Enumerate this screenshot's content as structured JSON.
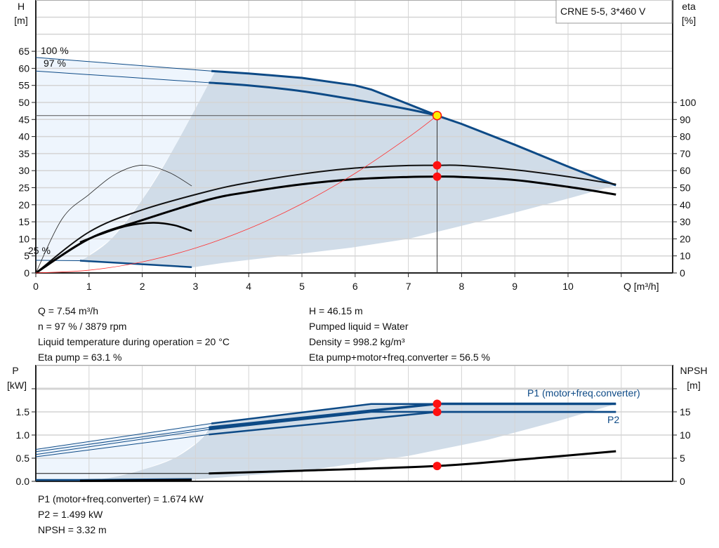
{
  "colors": {
    "curve_blue": "#0d4a86",
    "region_dark": "#d0dce8",
    "region_light": "#eef5fd",
    "grid": "#d4d4d4",
    "system_curve": "#ff3030",
    "duty_point": "#ffee00",
    "marker": "#ff1010"
  },
  "chart_data": [
    {
      "type": "line",
      "title": "CRNE 5-5, 3*460 V",
      "xlabel": "Q [m³/h]",
      "ylabel": [
        "H",
        "[m]"
      ],
      "y2label": [
        "eta",
        "[%]"
      ],
      "xlim": [
        0,
        11.95
      ],
      "ylim": [
        0,
        80
      ],
      "y2lim": [
        0,
        164.6
      ],
      "xticks": [
        "0",
        "1",
        "2",
        "3",
        "4",
        "5",
        "6",
        "7",
        "8",
        "9",
        "10"
      ],
      "yticks": [
        "0",
        "5",
        "10",
        "15",
        "20",
        "25",
        "30",
        "35",
        "40",
        "45",
        "50",
        "55",
        "60",
        "65"
      ],
      "y2ticks": [
        "0",
        "10",
        "20",
        "30",
        "40",
        "50",
        "60",
        "70",
        "80",
        "90",
        "100"
      ],
      "grid": true,
      "curve_labels": [
        "100 %",
        "97 %",
        "25 %"
      ],
      "series": [
        {
          "key": "H_100",
          "axis": "H",
          "points": [
            [
              0,
              63.2
            ],
            [
              3.3,
              59.2
            ],
            [
              4,
              58.5
            ],
            [
              5,
              57.2
            ],
            [
              6,
              55
            ],
            [
              6.3,
              53.8
            ],
            [
              7,
              49.5
            ],
            [
              7.54,
              46.15
            ],
            [
              8,
              43.7
            ],
            [
              9,
              37.6
            ],
            [
              10,
              31.2
            ],
            [
              10.9,
              25.7
            ]
          ]
        },
        {
          "key": "H_97",
          "axis": "H",
          "points": [
            [
              0,
              59.2
            ],
            [
              3.25,
              55.8
            ],
            [
              4,
              55
            ],
            [
              5,
              53.3
            ],
            [
              6,
              50.8
            ],
            [
              7,
              48
            ],
            [
              7.54,
              46.15
            ]
          ]
        },
        {
          "key": "H_25",
          "axis": "H",
          "points": [
            [
              0,
              3.7
            ],
            [
              0.83,
              3.6
            ],
            [
              2.93,
              1.7
            ]
          ]
        },
        {
          "key": "eta_pump",
          "axis": "eta",
          "points": [
            [
              0,
              0
            ],
            [
              1,
              24
            ],
            [
              2,
              37
            ],
            [
              3.25,
              48
            ],
            [
              4,
              53
            ],
            [
              5,
              58
            ],
            [
              6,
              61.5
            ],
            [
              7,
              63
            ],
            [
              7.54,
              63.1
            ],
            [
              8,
              63
            ],
            [
              9,
              60.5
            ],
            [
              10,
              56.5
            ],
            [
              10.9,
              52
            ]
          ]
        },
        {
          "key": "eta_total",
          "axis": "eta",
          "points": [
            [
              0,
              0
            ],
            [
              1,
              20
            ],
            [
              2,
              31
            ],
            [
              3.25,
              43
            ],
            [
              4,
              47.5
            ],
            [
              5,
              52
            ],
            [
              6,
              55
            ],
            [
              7,
              56.3
            ],
            [
              7.54,
              56.5
            ],
            [
              8,
              56.3
            ],
            [
              9,
              54.5
            ],
            [
              10,
              50.5
            ],
            [
              10.9,
              46
            ]
          ]
        },
        {
          "key": "eta_pump_min",
          "axis": "eta",
          "points": [
            [
              0,
              0
            ],
            [
              0.5,
              32
            ],
            [
              1,
              46
            ],
            [
              1.5,
              58
            ],
            [
              2,
              63.2
            ],
            [
              2.5,
              59
            ],
            [
              2.93,
              51
            ]
          ]
        },
        {
          "key": "eta_total_min",
          "axis": "eta",
          "points": [
            [
              0.83,
              18
            ],
            [
              1.2,
              22.5
            ],
            [
              1.7,
              27.5
            ],
            [
              2.2,
              29.4
            ],
            [
              2.6,
              28
            ],
            [
              2.93,
              24.6
            ]
          ]
        },
        {
          "key": "system_curve",
          "axis": "H",
          "points": [
            [
              0,
              0
            ],
            [
              1,
              0.81
            ],
            [
              2,
              3.25
            ],
            [
              3,
              7.3
            ],
            [
              4,
              12.99
            ],
            [
              5,
              20.29
            ],
            [
              6,
              29.22
            ],
            [
              7,
              39.78
            ],
            [
              7.54,
              46.15
            ]
          ]
        }
      ],
      "duty_point": {
        "Q": 7.54,
        "H": 46.15,
        "eta_pump": 63.1,
        "eta_total": 56.5
      }
    },
    {
      "type": "line",
      "ylabel": [
        "P",
        "[kW]"
      ],
      "y2label": [
        "NPSH",
        "[m]"
      ],
      "xlim": [
        0,
        11.95
      ],
      "ylim": [
        0,
        2.5
      ],
      "y2lim": [
        0,
        25
      ],
      "yticks": [
        "0.0",
        "0.5",
        "1.0",
        "1.5"
      ],
      "y2ticks": [
        "0",
        "5",
        "10",
        "15"
      ],
      "grid": true,
      "series": [
        {
          "key": "P1_100",
          "name": "P1 (motor+freq.converter)",
          "axis": "P",
          "points": [
            [
              0,
              0.69
            ],
            [
              3.3,
              1.25
            ],
            [
              6.3,
              1.67
            ],
            [
              10.9,
              1.67
            ]
          ]
        },
        {
          "key": "P1_97",
          "axis": "P",
          "points": [
            [
              0,
              0.64
            ],
            [
              3.25,
              1.16
            ],
            [
              7.54,
              1.674
            ],
            [
              10.9,
              1.674
            ]
          ]
        },
        {
          "key": "P2_100",
          "axis": "P",
          "points": [
            [
              0,
              0.58
            ],
            [
              3.25,
              1.12
            ],
            [
              6.3,
              1.5
            ],
            [
              10.9,
              1.5
            ]
          ]
        },
        {
          "key": "P2_97",
          "name": "P2",
          "axis": "P",
          "points": [
            [
              0,
              0.53
            ],
            [
              3.25,
              1.01
            ],
            [
              7.54,
              1.499
            ],
            [
              10.9,
              1.499
            ]
          ]
        },
        {
          "key": "P_min",
          "axis": "P",
          "points": [
            [
              0,
              0.03
            ],
            [
              0.83,
              0.03
            ],
            [
              2.93,
              0.05
            ]
          ]
        },
        {
          "key": "NPSH",
          "axis": "NPSH",
          "points": [
            [
              0,
              1.7
            ],
            [
              3.25,
              1.7
            ],
            [
              5,
              2.3
            ],
            [
              7.54,
              3.32
            ],
            [
              9,
              4.6
            ],
            [
              10.9,
              6.5
            ]
          ]
        },
        {
          "key": "NPSH_min",
          "axis": "NPSH",
          "points": [
            [
              0.83,
              0.1
            ],
            [
              2.93,
              0.3
            ]
          ]
        }
      ],
      "duty_point": {
        "Q": 7.54,
        "P1": 1.674,
        "P2": 1.499,
        "NPSH": 3.32
      }
    }
  ],
  "info_upper_left": [
    "Q = 7.54 m³/h",
    "n = 97 % / 3879 rpm",
    "Liquid temperature during operation = 20 °C",
    "Eta pump = 63.1 %"
  ],
  "info_upper_right": [
    "H = 46.15 m",
    "Pumped liquid = Water",
    "Density = 998.2 kg/m³",
    "Eta pump+motor+freq.converter = 56.5 %"
  ],
  "info_lower": [
    "P1 (motor+freq.converter) = 1.674 kW",
    "P2 = 1.499 kW",
    "NPSH = 3.32 m"
  ]
}
